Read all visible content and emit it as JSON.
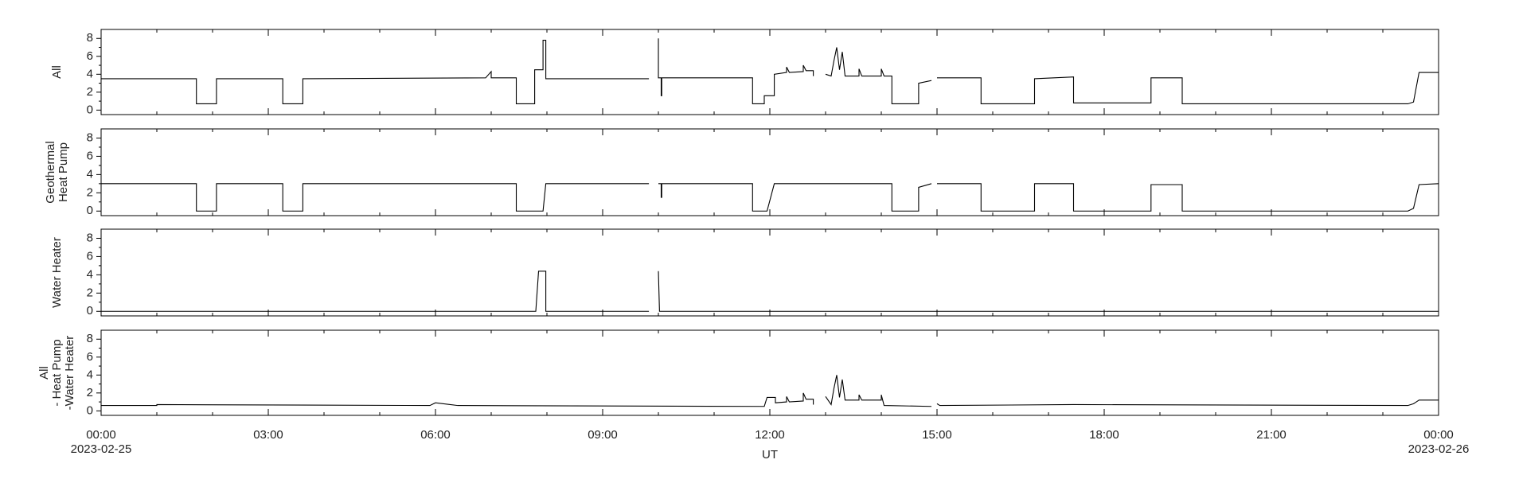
{
  "x_axis": {
    "label": "UT",
    "xlim": [
      0,
      24
    ],
    "xticks": [
      {
        "value": 0,
        "label": "00:00"
      },
      {
        "value": 3,
        "label": "03:00"
      },
      {
        "value": 6,
        "label": "06:00"
      },
      {
        "value": 9,
        "label": "09:00"
      },
      {
        "value": 12,
        "label": "12:00"
      },
      {
        "value": 15,
        "label": "15:00"
      },
      {
        "value": 18,
        "label": "18:00"
      },
      {
        "value": 21,
        "label": "21:00"
      },
      {
        "value": 24,
        "label": "00:00"
      }
    ],
    "xminorticks": [
      1,
      2,
      4,
      5,
      7,
      8,
      10,
      11,
      13,
      14,
      16,
      17,
      19,
      20,
      22,
      23
    ],
    "dates": [
      {
        "value": 0,
        "label": "2023-02-25"
      },
      {
        "value": 24,
        "label": "2023-02-26"
      }
    ]
  },
  "chart_data": [
    {
      "type": "line",
      "ylabel": [
        "All"
      ],
      "color": "#000000",
      "ylim": [
        -0.5,
        9
      ],
      "yticks": [
        0,
        2,
        4,
        6,
        8
      ],
      "yminorticks": [
        1,
        3,
        5,
        7
      ],
      "x": [
        0,
        1.71,
        1.71,
        2.07,
        2.07,
        3.26,
        3.26,
        3.62,
        3.62,
        6.9,
        7.0,
        7.0,
        7.45,
        7.45,
        7.78,
        7.78,
        7.93,
        7.93,
        7.98,
        7.98,
        9.83,
        9.9,
        10.0,
        10.0,
        10.05,
        10.05,
        10.06,
        10.06,
        11.69,
        11.69,
        11.9,
        11.9,
        12.08,
        12.08,
        12.3,
        12.3,
        12.35,
        12.6,
        12.6,
        12.65,
        12.78,
        12.78,
        12.85,
        13.0,
        13.1,
        13.15,
        13.2,
        13.25,
        13.3,
        13.35,
        13.6,
        13.6,
        13.65,
        14.0,
        14.0,
        14.05,
        14.19,
        14.19,
        14.67,
        14.67,
        14.9,
        14.95,
        15.0,
        15.79,
        15.79,
        16.75,
        16.75,
        17.45,
        17.45,
        18.84,
        18.84,
        19.4,
        19.4,
        23.45,
        23.55,
        23.65,
        24
      ],
      "values": [
        3.5,
        3.5,
        0.7,
        0.7,
        3.5,
        3.5,
        0.7,
        0.7,
        3.5,
        3.6,
        4.3,
        3.6,
        3.6,
        0.7,
        0.7,
        4.5,
        4.5,
        7.8,
        7.8,
        3.5,
        3.5,
        null,
        8.0,
        3.6,
        3.6,
        1.6,
        1.6,
        3.6,
        3.6,
        0.7,
        0.7,
        1.6,
        1.6,
        4.0,
        4.2,
        4.8,
        4.2,
        4.3,
        5.0,
        4.4,
        4.4,
        3.8,
        null,
        4.0,
        3.8,
        5.5,
        7.0,
        4.5,
        6.5,
        3.8,
        3.8,
        4.6,
        3.8,
        3.8,
        4.6,
        3.8,
        3.8,
        0.7,
        0.7,
        3.0,
        3.3,
        null,
        3.6,
        3.6,
        0.7,
        0.7,
        3.5,
        3.7,
        0.8,
        0.8,
        3.6,
        3.6,
        0.7,
        0.7,
        0.9,
        4.2,
        4.2
      ]
    },
    {
      "type": "line",
      "ylabel": [
        "Geothermal",
        "Heat Pump"
      ],
      "color": "#000000",
      "ylim": [
        -0.5,
        9
      ],
      "yticks": [
        0,
        2,
        4,
        6,
        8
      ],
      "yminorticks": [
        1,
        3,
        5,
        7
      ],
      "x": [
        0,
        1.71,
        1.71,
        2.07,
        2.07,
        3.26,
        3.26,
        3.62,
        3.62,
        7.45,
        7.45,
        7.93,
        7.98,
        9.83,
        9.9,
        10.0,
        10.05,
        10.05,
        10.06,
        10.06,
        11.69,
        11.69,
        11.95,
        12.08,
        14.19,
        14.19,
        14.67,
        14.67,
        14.9,
        14.95,
        15.0,
        15.79,
        15.79,
        16.75,
        16.75,
        17.45,
        17.45,
        18.84,
        18.84,
        19.4,
        19.4,
        23.45,
        23.55,
        23.65,
        24
      ],
      "values": [
        3.0,
        3.0,
        0.0,
        0.0,
        3.0,
        3.0,
        0.0,
        0.0,
        3.0,
        3.0,
        0.0,
        0.0,
        3.0,
        3.0,
        null,
        3.0,
        3.0,
        1.5,
        1.5,
        3.0,
        3.0,
        0.0,
        0.0,
        3.0,
        3.0,
        0.0,
        0.0,
        2.6,
        3.0,
        null,
        3.0,
        3.0,
        0.0,
        0.0,
        3.0,
        3.0,
        0.0,
        0.0,
        2.9,
        2.9,
        0.0,
        0.0,
        0.3,
        2.9,
        3.0
      ]
    },
    {
      "type": "line",
      "ylabel": [
        "Water Heater"
      ],
      "color": "#000000",
      "ylim": [
        -0.5,
        9
      ],
      "yticks": [
        0,
        2,
        4,
        6,
        8
      ],
      "yminorticks": [
        1,
        3,
        5,
        7
      ],
      "x": [
        0,
        7.8,
        7.85,
        7.98,
        7.98,
        9.83,
        9.9,
        10.0,
        10.02,
        24
      ],
      "values": [
        0,
        0,
        4.4,
        4.4,
        0,
        0,
        null,
        4.4,
        0,
        0
      ]
    },
    {
      "type": "line",
      "ylabel": [
        "All",
        "- Heat Pump",
        "-Water Heater"
      ],
      "color": "#000000",
      "ylim": [
        -0.5,
        9
      ],
      "yticks": [
        0,
        2,
        4,
        6,
        8
      ],
      "yminorticks": [
        1,
        3,
        5,
        7
      ],
      "x": [
        0,
        1.0,
        1.0,
        5.9,
        6.0,
        6.4,
        11.9,
        11.95,
        12.1,
        12.1,
        12.3,
        12.3,
        12.35,
        12.6,
        12.6,
        12.65,
        12.78,
        12.78,
        12.85,
        13.0,
        13.1,
        13.15,
        13.2,
        13.25,
        13.3,
        13.35,
        13.6,
        13.6,
        13.65,
        14.0,
        14.0,
        14.05,
        14.9,
        14.95,
        15.0,
        15.05,
        17.45,
        23.45,
        23.55,
        23.65,
        24
      ],
      "values": [
        0.6,
        0.6,
        0.7,
        0.6,
        0.9,
        0.6,
        0.5,
        1.5,
        1.5,
        0.9,
        1.0,
        1.6,
        1.0,
        1.1,
        2.0,
        1.3,
        1.3,
        0.7,
        null,
        1.6,
        0.7,
        2.5,
        4.0,
        1.5,
        3.5,
        1.2,
        1.2,
        1.8,
        1.2,
        1.2,
        1.8,
        0.6,
        0.5,
        null,
        0.8,
        0.6,
        0.7,
        0.6,
        0.8,
        1.2,
        1.2
      ]
    }
  ]
}
